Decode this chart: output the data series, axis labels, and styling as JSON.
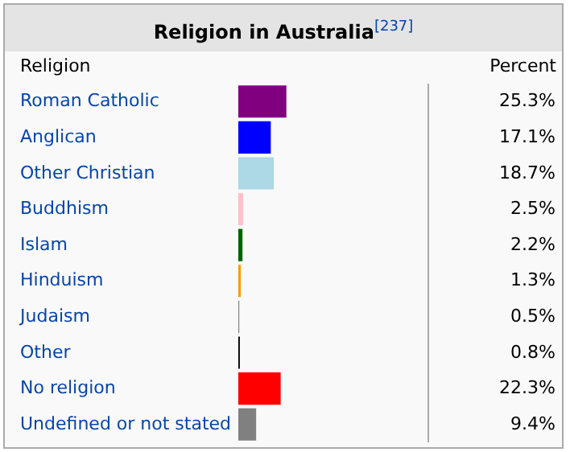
{
  "chart_data": {
    "type": "bar",
    "orientation": "horizontal",
    "title": "Religion in Australia$^{[237]}$",
    "ylabel": "Religion",
    "xlabel": "Percent",
    "categories": [
      "Roman Catholic",
      "Anglican",
      "Other Christian",
      "Buddhism",
      "Islam",
      "Hinduism",
      "Judaism",
      "Other",
      "No religion",
      "Undefined or not stated"
    ],
    "values": [
      25.3,
      17.1,
      18.7,
      2.5,
      2.2,
      1.3,
      0.5,
      0.8,
      22.3,
      9.4
    ],
    "colors": [
      "#800080",
      "#0000ff",
      "#add8e6",
      "#ffc0cb",
      "#006400",
      "#ff9900",
      "#808080",
      "#000000",
      "#ff0000",
      "#808080"
    ],
    "value_labels": [
      "25.3%",
      "17.1%",
      "18.7%",
      "2.5%",
      "2.2%",
      "1.3%",
      "0.5%",
      "0.8%",
      "22.3%",
      "9.4%"
    ],
    "xlim": [
      0,
      100
    ]
  }
}
